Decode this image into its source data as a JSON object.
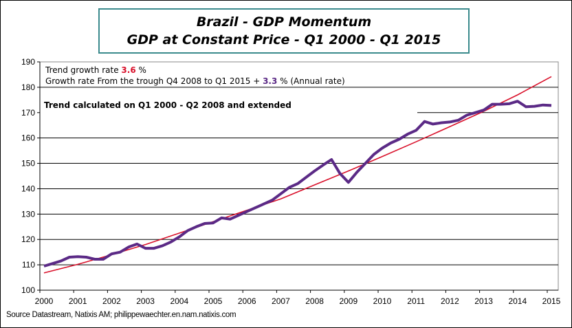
{
  "chart_data": {
    "type": "line",
    "title": "Brazil - GDP Momentum",
    "subtitle": "GDP at Constant Price - Q1 2000 - Q1 2015",
    "xlabel": "",
    "ylabel": "",
    "ylim": [
      100,
      190
    ],
    "yticks": [
      100,
      110,
      120,
      130,
      140,
      150,
      160,
      170,
      180,
      190
    ],
    "xticks": [
      "2000",
      "2001",
      "2002",
      "2003",
      "2004",
      "2005",
      "2006",
      "2007",
      "2008",
      "2009",
      "2010",
      "2011",
      "2012",
      "2013",
      "2014",
      "2015"
    ],
    "grid": true,
    "series": [
      {
        "key": "gdp",
        "frequency": "quarterly",
        "start": "Q1 2000",
        "color": "#5b2a86",
        "values": [
          109.5,
          110.5,
          111.5,
          113.0,
          113.2,
          113.0,
          112.2,
          112.2,
          114.3,
          115.0,
          117.0,
          118.2,
          116.5,
          116.5,
          117.5,
          119.0,
          121.0,
          123.5,
          125.0,
          126.3,
          126.5,
          128.5,
          128.0,
          129.5,
          131.0,
          132.5,
          134.0,
          135.5,
          138.0,
          140.5,
          142.0,
          144.5,
          147.0,
          149.3,
          151.5,
          146.0,
          142.5,
          146.5,
          150.0,
          153.5,
          156.0,
          158.0,
          159.5,
          161.5,
          163.0,
          166.5,
          165.5,
          166.0,
          166.3,
          167.0,
          169.0,
          170.0,
          171.0,
          173.3,
          173.3,
          173.5,
          174.5,
          172.3,
          172.5,
          173.0,
          172.8
        ]
      },
      {
        "key": "trend",
        "frequency": "annual",
        "start": "Q1 2000",
        "color": "#d9102a",
        "values": [
          106.8,
          110.2,
          114.0,
          118.0,
          122.5,
          127.0,
          131.5,
          136.0,
          141.5,
          147.0,
          152.7,
          158.5,
          164.5,
          170.5,
          177.0,
          184.2
        ]
      }
    ],
    "annotations": {
      "line1_prefix": "Trend growth rate ",
      "line1_value": "3.6",
      "line1_suffix": " %",
      "line2_prefix": "Growth rate From the trough  Q4 2008 to Q1 2015 + ",
      "line2_value": "3.3",
      "line2_suffix": " % (Annual rate)",
      "line3": "Trend calculated  on Q1 2000 - Q2 2008 and extended",
      "value1_color": "#d9102a",
      "value2_color": "#5b2a86"
    },
    "source": "Source Datastream, Natixis AM;  philippewaechter.en.nam.natixis.com"
  }
}
